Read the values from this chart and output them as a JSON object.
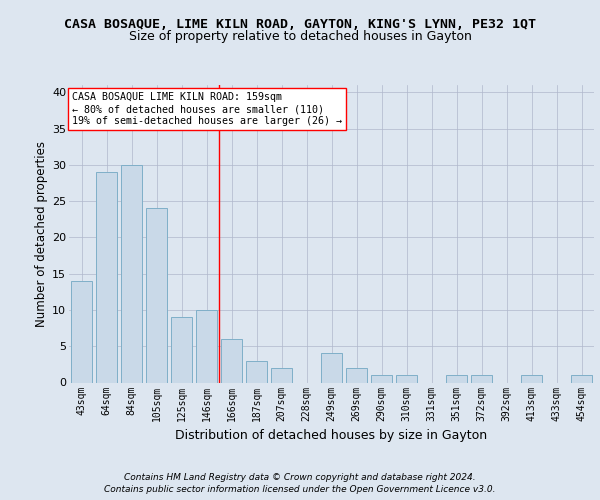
{
  "title": "CASA BOSAQUE, LIME KILN ROAD, GAYTON, KING'S LYNN, PE32 1QT",
  "subtitle": "Size of property relative to detached houses in Gayton",
  "xlabel": "Distribution of detached houses by size in Gayton",
  "ylabel": "Number of detached properties",
  "categories": [
    "43sqm",
    "64sqm",
    "84sqm",
    "105sqm",
    "125sqm",
    "146sqm",
    "166sqm",
    "187sqm",
    "207sqm",
    "228sqm",
    "249sqm",
    "269sqm",
    "290sqm",
    "310sqm",
    "331sqm",
    "351sqm",
    "372sqm",
    "392sqm",
    "413sqm",
    "433sqm",
    "454sqm"
  ],
  "values": [
    14,
    29,
    30,
    24,
    9,
    10,
    6,
    3,
    2,
    0,
    4,
    2,
    1,
    1,
    0,
    1,
    1,
    0,
    1,
    0,
    1
  ],
  "bar_color": "#c9d9e8",
  "bar_edge_color": "#7fafc8",
  "grid_color": "#b0b8cc",
  "background_color": "#dde6f0",
  "plot_bg_color": "#dde6f0",
  "red_line_x": 5.5,
  "annotation_text": "CASA BOSAQUE LIME KILN ROAD: 159sqm\n← 80% of detached houses are smaller (110)\n19% of semi-detached houses are larger (26) →",
  "annotation_box_color": "#ffffff",
  "footer_line1": "Contains HM Land Registry data © Crown copyright and database right 2024.",
  "footer_line2": "Contains public sector information licensed under the Open Government Licence v3.0.",
  "ylim": [
    0,
    41
  ],
  "yticks": [
    0,
    5,
    10,
    15,
    20,
    25,
    30,
    35,
    40
  ],
  "title_fontsize": 9.5,
  "subtitle_fontsize": 9,
  "ylabel_fontsize": 8.5,
  "xlabel_fontsize": 9
}
